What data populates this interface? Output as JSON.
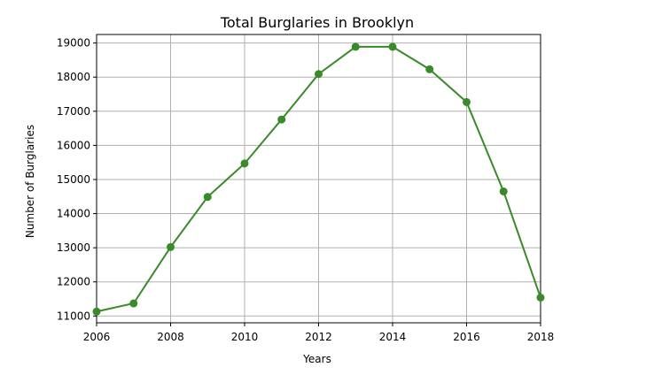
{
  "chart_data": {
    "type": "line",
    "title": "Total Burglaries in Brooklyn",
    "xlabel": "Years",
    "ylabel": "Number of Burglaries",
    "xlim": [
      2006,
      2018
    ],
    "ylim": [
      10800,
      19250
    ],
    "xticks": [
      2006,
      2008,
      2010,
      2012,
      2014,
      2016,
      2018
    ],
    "yticks": [
      11000,
      12000,
      13000,
      14000,
      15000,
      16000,
      17000,
      18000,
      19000
    ],
    "grid": true,
    "legend": "none",
    "colors": {
      "line": "#3a8a2a",
      "grid": "#b0b0b0",
      "axis": "#000000"
    },
    "series": [
      {
        "x": [
          2006,
          2007,
          2008,
          2009,
          2010,
          2011,
          2012,
          2013,
          2014,
          2015,
          2016,
          2017,
          2018
        ],
        "values": [
          11130,
          11370,
          13020,
          14490,
          15470,
          16760,
          18090,
          18890,
          18890,
          18230,
          17270,
          14650,
          11540
        ]
      }
    ]
  }
}
